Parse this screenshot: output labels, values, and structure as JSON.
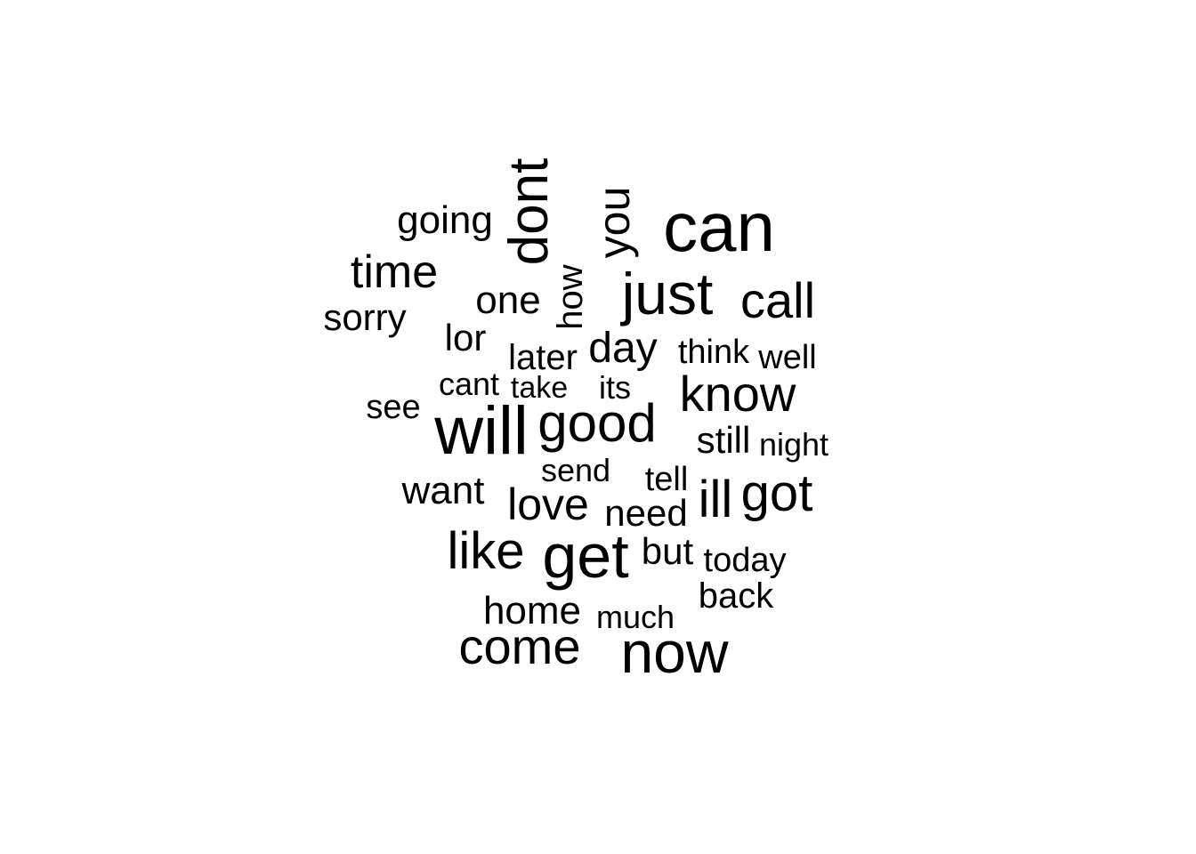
{
  "word_cloud": {
    "text_color": "#000000",
    "background_color": "#ffffff",
    "words": [
      {
        "text": "can",
        "rotated": false
      },
      {
        "text": "dont",
        "rotated": true
      },
      {
        "text": "you",
        "rotated": true
      },
      {
        "text": "going",
        "rotated": false
      },
      {
        "text": "time",
        "rotated": false
      },
      {
        "text": "just",
        "rotated": false
      },
      {
        "text": "call",
        "rotated": false
      },
      {
        "text": "one",
        "rotated": false
      },
      {
        "text": "how",
        "rotated": true
      },
      {
        "text": "sorry",
        "rotated": false
      },
      {
        "text": "lor",
        "rotated": false
      },
      {
        "text": "later",
        "rotated": false
      },
      {
        "text": "day",
        "rotated": false
      },
      {
        "text": "think",
        "rotated": false
      },
      {
        "text": "well",
        "rotated": false
      },
      {
        "text": "cant",
        "rotated": false
      },
      {
        "text": "take",
        "rotated": false
      },
      {
        "text": "its",
        "rotated": false
      },
      {
        "text": "know",
        "rotated": false
      },
      {
        "text": "see",
        "rotated": false
      },
      {
        "text": "will",
        "rotated": false
      },
      {
        "text": "good",
        "rotated": false
      },
      {
        "text": "still",
        "rotated": false
      },
      {
        "text": "night",
        "rotated": false
      },
      {
        "text": "send",
        "rotated": false
      },
      {
        "text": "tell",
        "rotated": false
      },
      {
        "text": "want",
        "rotated": false
      },
      {
        "text": "love",
        "rotated": false
      },
      {
        "text": "need",
        "rotated": false
      },
      {
        "text": "ill",
        "rotated": false
      },
      {
        "text": "got",
        "rotated": false
      },
      {
        "text": "like",
        "rotated": false
      },
      {
        "text": "get",
        "rotated": false
      },
      {
        "text": "but",
        "rotated": false
      },
      {
        "text": "today",
        "rotated": false
      },
      {
        "text": "back",
        "rotated": false
      },
      {
        "text": "home",
        "rotated": false
      },
      {
        "text": "much",
        "rotated": false
      },
      {
        "text": "come",
        "rotated": false
      },
      {
        "text": "now",
        "rotated": false
      }
    ]
  }
}
